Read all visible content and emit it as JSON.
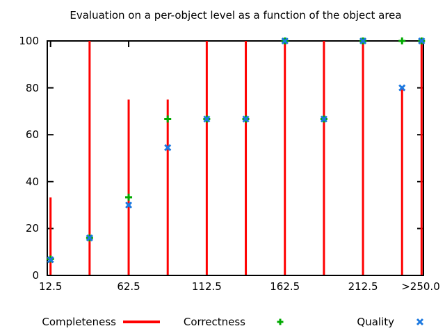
{
  "title": "Evaluation on a per-object level as a function of the object area",
  "colors": {
    "completeness": "#ff0000",
    "correctness": "#00aa00",
    "quality": "#1b78e0",
    "axis": "#000000",
    "background": "#ffffff",
    "text": "#000000"
  },
  "legend": {
    "items": [
      {
        "label": "Completeness",
        "glyph": "red-line-sample"
      },
      {
        "label": "Correctness",
        "glyph": "green-plus-marker"
      },
      {
        "label": "Quality",
        "glyph": "blue-x-marker"
      }
    ]
  },
  "chart_data": {
    "type": "line",
    "title": "Evaluation on a per-object level as a function of the object area",
    "styles_note": "Completeness drawn as red vertical impulses; Correctness as green plus points; Quality as blue x points",
    "x": [
      12.5,
      37.5,
      62.5,
      87.5,
      112.5,
      137.5,
      162.5,
      187.5,
      212.5,
      237.5,
      250
    ],
    "x_last_bin_label": ">250.0",
    "x_tick_values": [
      12.5,
      62.5,
      112.5,
      162.5,
      212.5,
      250
    ],
    "x_tick_labels": [
      "12.5",
      "62.5",
      "112.5",
      "162.5",
      "212.5",
      ">250.0"
    ],
    "y_ticks": [
      0,
      20,
      40,
      60,
      80,
      100
    ],
    "ylim": [
      0,
      100
    ],
    "xlabel": "",
    "ylabel": "",
    "grid": false,
    "legend_position": "bottom-outside-horizontal",
    "series": [
      {
        "name": "Completeness",
        "style": "impulses",
        "color": "#ff0000",
        "values": [
          33.3,
          100,
          75,
          75,
          100,
          100,
          100,
          100,
          100,
          80,
          100
        ]
      },
      {
        "name": "Correctness",
        "style": "points-plus",
        "color": "#00aa00",
        "values": [
          7,
          16,
          33.3,
          66.7,
          66.7,
          66.7,
          100,
          66.7,
          100,
          100,
          100
        ]
      },
      {
        "name": "Quality",
        "style": "points-x",
        "color": "#1b78e0",
        "values": [
          6.7,
          16,
          30,
          54.5,
          66.7,
          66.7,
          100,
          66.7,
          100,
          80,
          100
        ]
      }
    ]
  }
}
